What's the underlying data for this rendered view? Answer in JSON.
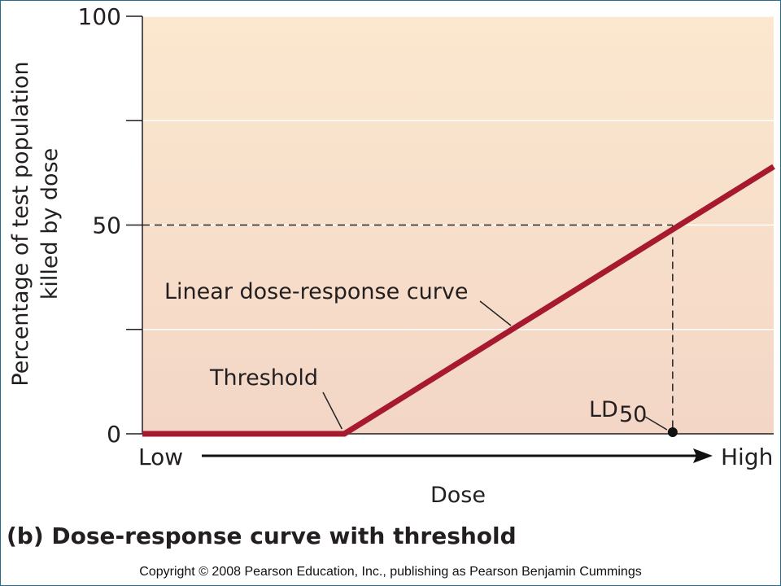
{
  "chart_data": {
    "type": "line",
    "xlabel": "Dose",
    "x_low_label": "Low",
    "x_high_label": "High",
    "ylabel_line1": "Percentage of test population",
    "ylabel_line2": "killed by dose",
    "ylim": [
      0,
      100
    ],
    "yticks": [
      0,
      25,
      50,
      75,
      100
    ],
    "ytick_labels": [
      "0",
      "",
      "50",
      "",
      "100"
    ],
    "xlim": [
      0,
      100
    ],
    "grid": true,
    "series": [
      {
        "points": [
          [
            0,
            0
          ],
          [
            32,
            0
          ],
          [
            100,
            64
          ]
        ],
        "color": "#a6192e"
      }
    ],
    "threshold_x": 32,
    "ld50": {
      "x": 84,
      "y": 50
    },
    "annotations": {
      "curve_label": "Linear dose-response curve",
      "threshold_label": "Threshold",
      "ld_label": "LD",
      "ld_subscript": "50"
    },
    "colors": {
      "background_top": "#fbe8cf",
      "background_bottom": "#f3d6c6",
      "curve": "#a6192e",
      "axis": "#231f20"
    }
  },
  "caption": "(b) Dose-response curve with threshold",
  "copyright": "Copyright © 2008 Pearson Education, Inc., publishing as Pearson Benjamin Cummings"
}
